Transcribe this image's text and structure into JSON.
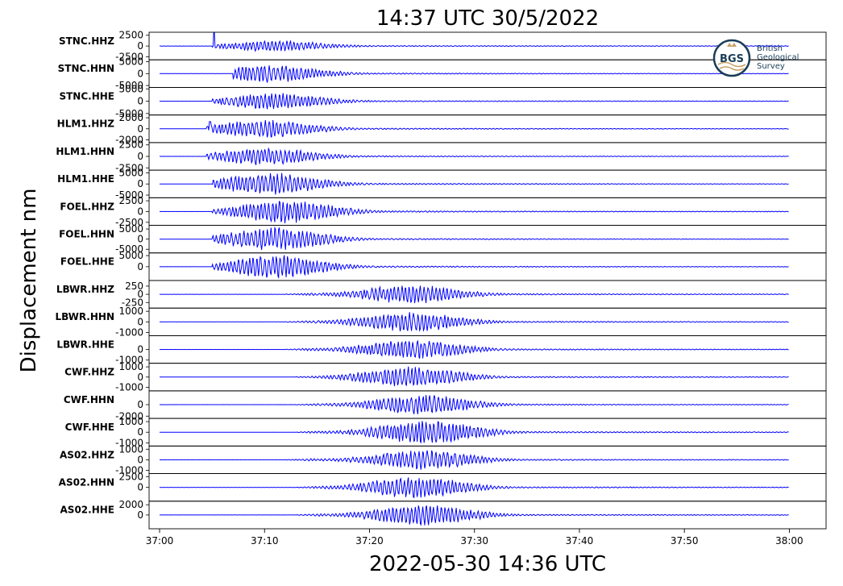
{
  "chart_data": {
    "type": "line",
    "title": "14:37 UTC 30/5/2022",
    "xlabel": "2022-05-30 14:36 UTC",
    "ylabel": "Displacement nm",
    "x_range": [
      "36:59.0",
      "38:03.5"
    ],
    "x_ticks": [
      "37:00",
      "37:10",
      "37:20",
      "37:30",
      "37:40",
      "37:50",
      "38:00"
    ],
    "x_ticks_seconds": [
      60,
      70,
      80,
      90,
      100,
      110,
      120
    ],
    "logo": {
      "line1": "British",
      "line2": "Geological",
      "line3": "Survey",
      "mark": "BGS"
    },
    "colors": {
      "trace": "#0000ff",
      "axes": "#000000",
      "text": "#000000"
    },
    "grid": false,
    "series": [
      {
        "name": "STNC.HHZ",
        "ylim": [
          -3200,
          3200
        ],
        "yticks": [
          2500,
          0,
          -2500
        ],
        "ytick_labels": [
          "2500",
          "0",
          "-2500"
        ],
        "onset": 65,
        "peak_time": 71,
        "peak_amp": 1300,
        "spike_time": 65.2,
        "spike_amp": 3100,
        "noise": 120
      },
      {
        "name": "STNC.HHN",
        "ylim": [
          -5800,
          5800
        ],
        "yticks": [
          5000,
          0,
          -5000
        ],
        "ytick_labels": [
          "5000",
          "0",
          "-5000"
        ],
        "onset": 67,
        "peak_time": 70.5,
        "peak_amp": 4000,
        "noise": 150
      },
      {
        "name": "STNC.HHE",
        "ylim": [
          -5600,
          5600
        ],
        "yticks": [
          5000,
          0,
          -5000
        ],
        "ytick_labels": [
          "5000",
          "0",
          "-5000"
        ],
        "onset": 65,
        "peak_time": 71,
        "peak_amp": 3500,
        "noise": 150
      },
      {
        "name": "HLM1.HHZ",
        "ylim": [
          -2500,
          2500
        ],
        "yticks": [
          2000,
          0,
          -2000
        ],
        "ytick_labels": [
          "2000",
          "0",
          "-2000"
        ],
        "onset": 64.5,
        "peak_time": 70,
        "peak_amp": 1700,
        "spike_time": 64.8,
        "spike_amp": 1300,
        "noise": 80
      },
      {
        "name": "HLM1.HHN",
        "ylim": [
          -3000,
          3000
        ],
        "yticks": [
          2500,
          0,
          -2500
        ],
        "ytick_labels": [
          "2500",
          "0",
          "-2500"
        ],
        "onset": 64.5,
        "peak_time": 70,
        "peak_amp": 2000,
        "noise": 90
      },
      {
        "name": "HLM1.HHE",
        "ylim": [
          -6200,
          6200
        ],
        "yticks": [
          5000,
          0,
          -5000
        ],
        "ytick_labels": [
          "5000",
          "0",
          "-5000"
        ],
        "onset": 65,
        "peak_time": 70.5,
        "peak_amp": 5200,
        "noise": 150
      },
      {
        "name": "FOEL.HHZ",
        "ylim": [
          -3200,
          3200
        ],
        "yticks": [
          2500,
          0,
          -2500
        ],
        "ytick_labels": [
          "2500",
          "0",
          "-2500"
        ],
        "onset": 65,
        "peak_time": 72,
        "peak_amp": 2800,
        "noise": 100
      },
      {
        "name": "FOEL.HHN",
        "ylim": [
          -6800,
          6800
        ],
        "yticks": [
          5000,
          0,
          -5000
        ],
        "ytick_labels": [
          "5000",
          "0",
          "-5000"
        ],
        "onset": 65,
        "peak_time": 71,
        "peak_amp": 6000,
        "noise": 150
      },
      {
        "name": "FOEL.HHE",
        "ylim": [
          -6200,
          6200
        ],
        "yticks": [
          5000,
          0
        ],
        "ytick_labels": [
          "5000",
          "0"
        ],
        "onset": 65,
        "peak_time": 71,
        "peak_amp": 5500,
        "noise": 150
      },
      {
        "name": "LBWR.HHZ",
        "ylim": [
          -420,
          420
        ],
        "yticks": [
          250,
          0,
          -250
        ],
        "ytick_labels": [
          "250",
          "0",
          "-250"
        ],
        "onset": 72,
        "peak_time": 84,
        "peak_amp": 300,
        "noise": 15
      },
      {
        "name": "LBWR.HHN",
        "ylim": [
          -1300,
          1300
        ],
        "yticks": [
          1000,
          0,
          -1000
        ],
        "ytick_labels": [
          "1000",
          "0",
          "-1000"
        ],
        "onset": 72,
        "peak_time": 84,
        "peak_amp": 1000,
        "noise": 40
      },
      {
        "name": "LBWR.HHE",
        "ylim": [
          -1300,
          1300
        ],
        "yticks": [
          0,
          -1000
        ],
        "ytick_labels": [
          "0",
          "-1000"
        ],
        "onset": 72,
        "peak_time": 84,
        "peak_amp": 1000,
        "noise": 40
      },
      {
        "name": "CWF.HHZ",
        "ylim": [
          -1350,
          1350
        ],
        "yticks": [
          1000,
          0,
          -1000
        ],
        "ytick_labels": [
          "1000",
          "0",
          "-1000"
        ],
        "onset": 73,
        "peak_time": 84,
        "peak_amp": 1100,
        "noise": 40
      },
      {
        "name": "CWF.HHN",
        "ylim": [
          -2400,
          2400
        ],
        "yticks": [
          0,
          -2000
        ],
        "ytick_labels": [
          "0",
          "-2000"
        ],
        "onset": 73,
        "peak_time": 85,
        "peak_amp": 1800,
        "noise": 60
      },
      {
        "name": "CWF.HHE",
        "ylim": [
          -1300,
          1300
        ],
        "yticks": [
          1000,
          0,
          -1000
        ],
        "ytick_labels": [
          "1000",
          "0",
          "-1000"
        ],
        "onset": 73,
        "peak_time": 85.5,
        "peak_amp": 1200,
        "noise": 40
      },
      {
        "name": "AS02.HHZ",
        "ylim": [
          -1300,
          1300
        ],
        "yticks": [
          1000,
          0,
          -1000
        ],
        "ytick_labels": [
          "1000",
          "0",
          "-1000"
        ],
        "onset": 72,
        "peak_time": 85,
        "peak_amp": 1000,
        "noise": 40
      },
      {
        "name": "AS02.HHN",
        "ylim": [
          -3200,
          3200
        ],
        "yticks": [
          2500,
          0
        ],
        "ytick_labels": [
          "2500",
          "0"
        ],
        "onset": 73,
        "peak_time": 84.5,
        "peak_amp": 2700,
        "noise": 80
      },
      {
        "name": "AS02.HHE",
        "ylim": [
          -2700,
          2700
        ],
        "yticks": [
          2000,
          0
        ],
        "ytick_labels": [
          "2000",
          "0"
        ],
        "onset": 73,
        "peak_time": 85,
        "peak_amp": 2200,
        "noise": 70
      }
    ]
  }
}
